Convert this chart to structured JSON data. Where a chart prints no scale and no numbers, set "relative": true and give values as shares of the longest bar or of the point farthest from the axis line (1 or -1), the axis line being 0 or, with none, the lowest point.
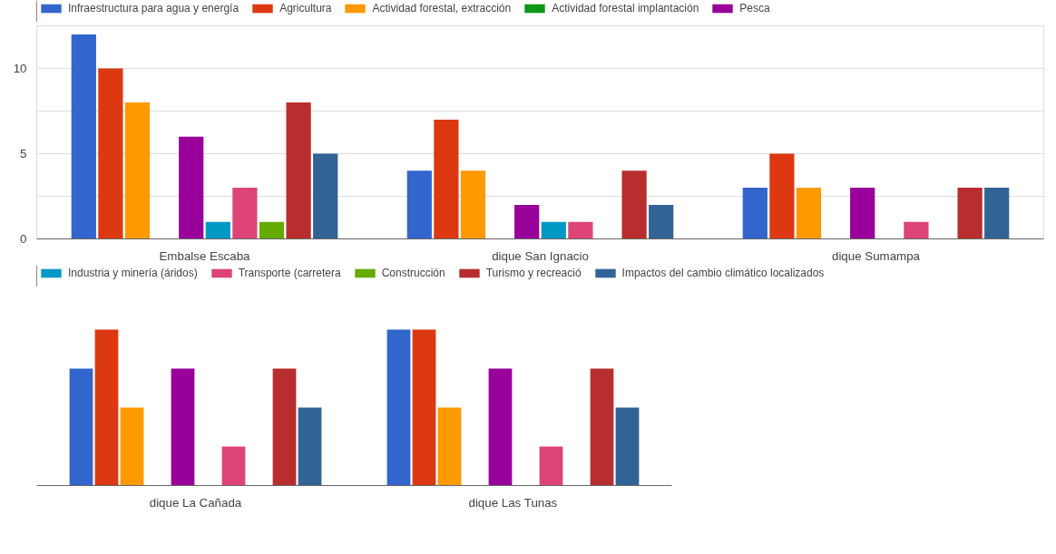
{
  "chart_data": [
    {
      "type": "bar",
      "categories": [
        "Embalse Escaba",
        "dique San Ignacio",
        "dique Sumampa"
      ],
      "ylim": [
        0,
        12.5
      ],
      "yticks": [
        0,
        {
          "value": 2.5,
          "label": null
        },
        5,
        {
          "value": 7.5,
          "label": null
        },
        10,
        {
          "value": 12.5,
          "label": null
        }
      ],
      "grid": "y",
      "legend": "top",
      "series": [
        {
          "name": "Infraestructura para agua y energía",
          "color": "#3366cc",
          "values": [
            12,
            4,
            3
          ]
        },
        {
          "name": "Agricultura",
          "color": "#dc3912",
          "values": [
            10,
            7,
            5
          ]
        },
        {
          "name": "Actividad forestal, extracción",
          "color": "#ff9900",
          "values": [
            8,
            4,
            3
          ]
        },
        {
          "name": "Actividad forestal implantación",
          "color": "#109618",
          "values": [
            0,
            0,
            0
          ]
        },
        {
          "name": "Pesca",
          "color": "#990099",
          "values": [
            6,
            2,
            3
          ]
        },
        {
          "color": "#0099c6",
          "values": [
            1,
            1,
            0
          ]
        },
        {
          "color": "#dd4477",
          "values": [
            3,
            1,
            1
          ]
        },
        {
          "color": "#66aa00",
          "values": [
            1,
            0,
            0
          ]
        },
        {
          "color": "#b82e2e",
          "values": [
            8,
            4,
            3
          ]
        },
        {
          "color": "#316395",
          "values": [
            5,
            2,
            3
          ]
        }
      ]
    },
    {
      "type": "bar",
      "categories": [
        "dique La Cañada",
        "dique Las Tunas"
      ],
      "relative": true,
      "legend": "top",
      "series": [
        {
          "color": "#3366cc",
          "values": [
            0.75,
            1
          ]
        },
        {
          "color": "#dc3912",
          "values": [
            1,
            1
          ]
        },
        {
          "color": "#ff9900",
          "values": [
            0.5,
            0.5
          ]
        },
        {
          "color": "#109618",
          "values": [
            null,
            null
          ]
        },
        {
          "color": "#990099",
          "values": [
            0.75,
            0.75
          ]
        },
        {
          "name": "Industria y minería (áridos)",
          "color": "#0099c6",
          "values": [
            null,
            null
          ]
        },
        {
          "name": "Transporte (carretera",
          "color": "#dd4477",
          "values": [
            0.25,
            0.25
          ]
        },
        {
          "name": "Construcción",
          "color": "#66aa00",
          "values": [
            null,
            null
          ]
        },
        {
          "name": "Turismo y recreació",
          "color": "#b82e2e",
          "values": [
            0.75,
            0.75
          ]
        },
        {
          "name": "Impactos del cambio climático localizados",
          "color": "#316395",
          "values": [
            0.5,
            0.5
          ]
        }
      ]
    }
  ]
}
